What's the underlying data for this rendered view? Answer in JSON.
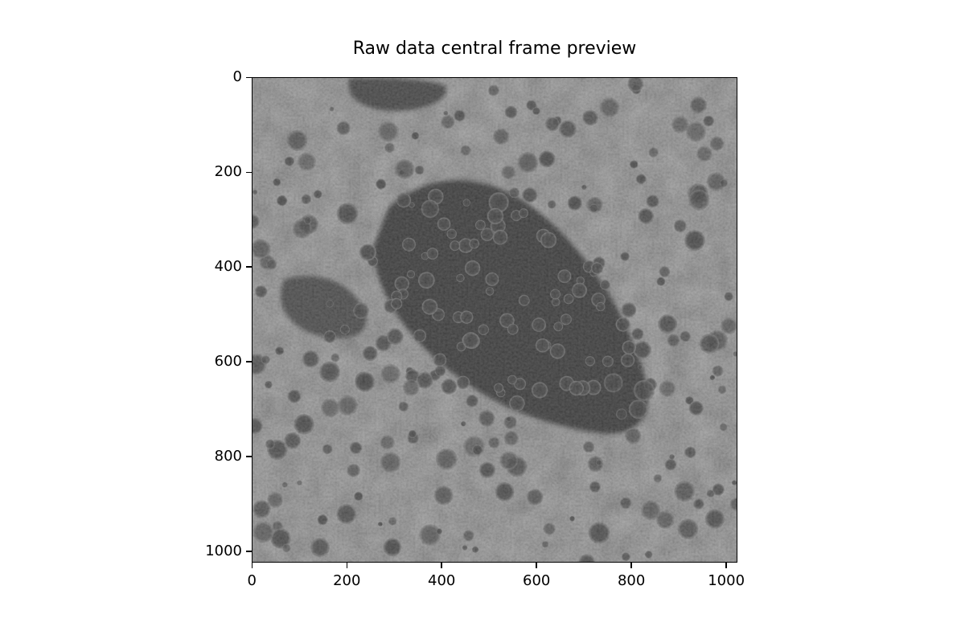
{
  "figure": {
    "title": "Raw data central frame preview",
    "image_extent": {
      "width": 1024,
      "height": 1024
    },
    "colormap": "gray",
    "x_ticks": [
      0,
      200,
      400,
      600,
      800,
      1000
    ],
    "y_ticks": [
      0,
      200,
      400,
      600,
      800,
      1000
    ],
    "x_tick_labels": [
      "0",
      "200",
      "400",
      "600",
      "800",
      "1000"
    ],
    "y_tick_labels": [
      "0",
      "200",
      "400",
      "600",
      "800",
      "1000"
    ]
  }
}
